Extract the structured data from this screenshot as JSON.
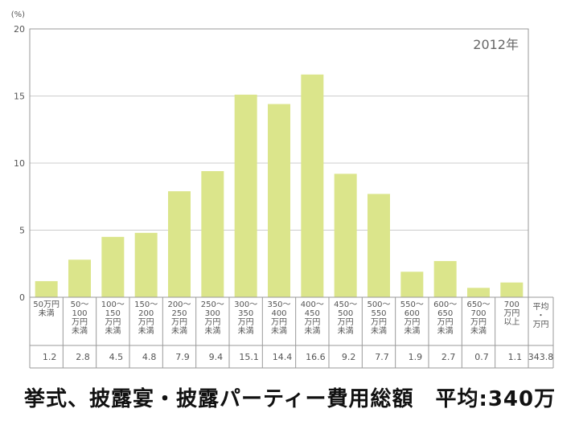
{
  "chart_data": {
    "type": "bar",
    "ylabel": "(%)",
    "ylim": [
      0,
      20
    ],
    "yticks": [
      0,
      5,
      10,
      15,
      20
    ],
    "year_label": "2012年",
    "grid": true,
    "categories": [
      [
        "50万円",
        "未満"
      ],
      [
        "50～",
        "100",
        "万円",
        "未満"
      ],
      [
        "100～",
        "150",
        "万円",
        "未満"
      ],
      [
        "150～",
        "200",
        "万円",
        "未満"
      ],
      [
        "200～",
        "250",
        "万円",
        "未満"
      ],
      [
        "250～",
        "300",
        "万円",
        "未満"
      ],
      [
        "300～",
        "350",
        "万円",
        "未満"
      ],
      [
        "350～",
        "400",
        "万円",
        "未満"
      ],
      [
        "400～",
        "450",
        "万円",
        "未満"
      ],
      [
        "450～",
        "500",
        "万円",
        "未満"
      ],
      [
        "500～",
        "550",
        "万円",
        "未満"
      ],
      [
        "550～",
        "600",
        "万円",
        "未満"
      ],
      [
        "600～",
        "650",
        "万円",
        "未満"
      ],
      [
        "650～",
        "700",
        "万円",
        "未満"
      ],
      [
        "700",
        "万円",
        "以上"
      ]
    ],
    "values": [
      1.2,
      2.8,
      4.5,
      4.8,
      7.9,
      9.4,
      15.1,
      14.4,
      16.6,
      9.2,
      7.7,
      1.9,
      2.7,
      0.7,
      1.1
    ],
    "value_labels": [
      "1.2",
      "2.8",
      "4.5",
      "4.8",
      "7.9",
      "9.4",
      "15.1",
      "14.4",
      "16.6",
      "9.2",
      "7.7",
      "1.9",
      "2.7",
      "0.7",
      "1.1"
    ],
    "average": {
      "label": [
        "平均",
        "・",
        "万円"
      ],
      "value": "343.8"
    },
    "bar_color": "#dbe58b",
    "grid_color": "#cccccc",
    "axis_color": "#999999"
  },
  "caption": "挙式、披露宴・披露パーティー費用総額　平均:340万"
}
